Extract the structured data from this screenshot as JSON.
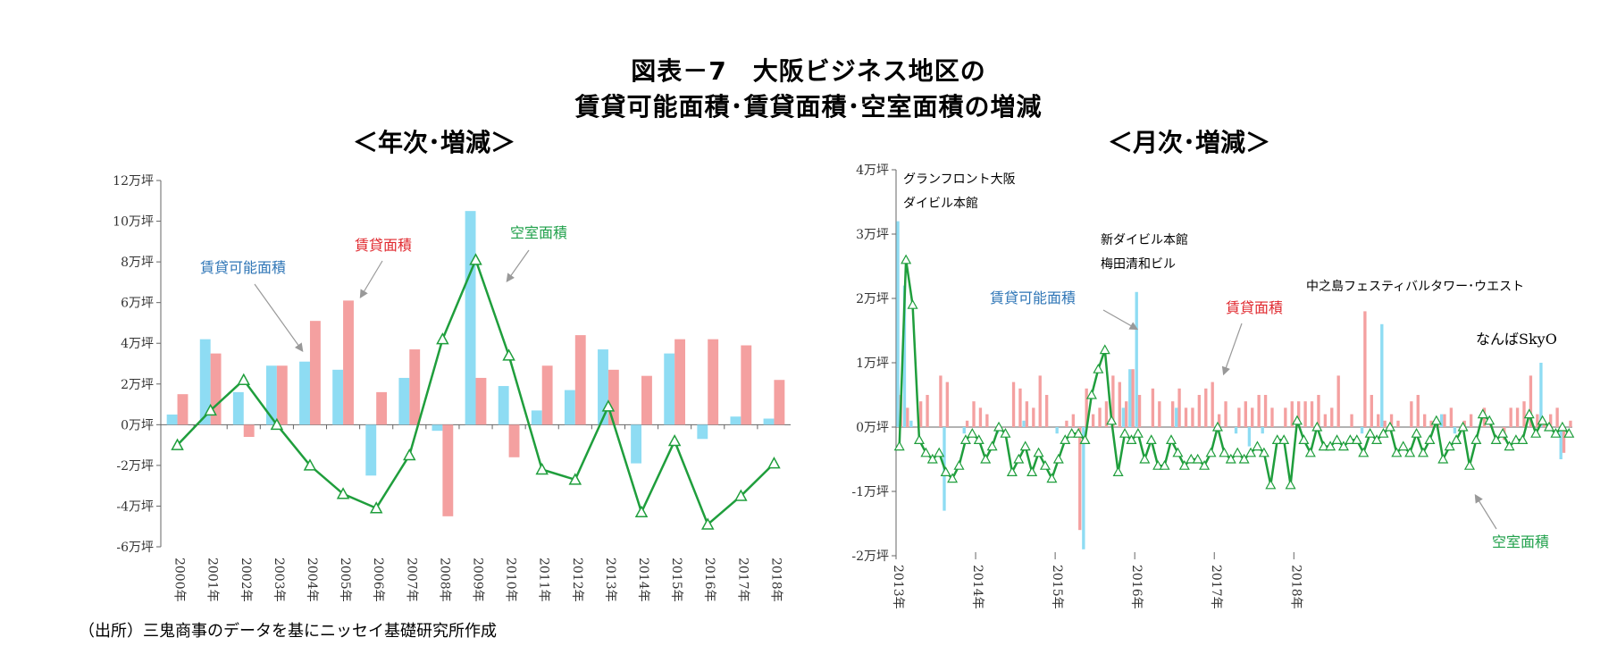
{
  "title_line1": "図表－7　大阪ビジネス地区の",
  "title_line2": "賃貸可能面積･賃貸面積･空室面積の増減",
  "source": "（出所）三鬼商事のデータを基にニッセイ基礎研究所作成",
  "colors": {
    "available": "#8edcf3",
    "leased": "#f4a0a0",
    "vacant": "#1f9e3c",
    "label_available": "#2e75b6",
    "label_leased": "#e0282e",
    "label_vacant": "#1fa04a",
    "arrow": "#999999"
  },
  "chart_data": [
    {
      "type": "bar",
      "title": "＜年次･増減＞",
      "categories": [
        "2000年",
        "2001年",
        "2002年",
        "2003年",
        "2004年",
        "2005年",
        "2006年",
        "2007年",
        "2008年",
        "2009年",
        "2010年",
        "2011年",
        "2012年",
        "2013年",
        "2014年",
        "2015年",
        "2016年",
        "2017年",
        "2018年"
      ],
      "y_ticks": [
        "-6万坪",
        "-4万坪",
        "-2万坪",
        "0万坪",
        "2万坪",
        "4万坪",
        "6万坪",
        "8万坪",
        "10万坪",
        "12万坪"
      ],
      "ylim": [
        -6,
        12
      ],
      "unit": "万坪",
      "series": [
        {
          "name": "賃貸可能面積",
          "kind": "bar",
          "values": [
            0.5,
            4.2,
            1.6,
            2.9,
            3.1,
            2.7,
            -2.5,
            2.3,
            -0.3,
            10.5,
            1.9,
            0.7,
            1.7,
            3.7,
            -1.9,
            3.5,
            -0.7,
            0.4,
            0.3
          ]
        },
        {
          "name": "賃貸面積",
          "kind": "bar",
          "values": [
            1.5,
            3.5,
            -0.6,
            2.9,
            5.1,
            6.1,
            1.6,
            3.7,
            -4.5,
            2.3,
            -1.6,
            2.9,
            4.4,
            2.7,
            2.4,
            4.2,
            4.2,
            3.9,
            2.2
          ]
        },
        {
          "name": "空室面積",
          "kind": "line",
          "values": [
            -1.0,
            0.7,
            2.2,
            0.0,
            -2.0,
            -3.4,
            -4.1,
            -1.5,
            4.2,
            8.1,
            3.4,
            -2.2,
            -2.7,
            0.9,
            -4.3,
            -0.8,
            -4.9,
            -3.5,
            -1.9
          ]
        }
      ],
      "annotations": [
        "賃貸可能面積",
        "賃貸面積",
        "空室面積"
      ]
    },
    {
      "type": "bar",
      "title": "＜月次･増減＞",
      "x_tick_labels": [
        "2013年",
        "2014年",
        "2015年",
        "2016年",
        "2017年",
        "2018年"
      ],
      "y_ticks": [
        "-2万坪",
        "-1万坪",
        "0万坪",
        "1万坪",
        "2万坪",
        "3万坪",
        "4万坪"
      ],
      "ylim": [
        -2,
        4
      ],
      "unit": "万坪",
      "months_start": "2013-01",
      "series": [
        {
          "name": "賃貸可能面積",
          "kind": "bar",
          "values": [
            3.2,
            2.2,
            0.1,
            0.0,
            0.0,
            0.0,
            0.0,
            -1.3,
            0.0,
            0.0,
            -0.1,
            0.0,
            0.0,
            0.0,
            0.0,
            -0.1,
            0.0,
            0.0,
            0.0,
            0.1,
            0.0,
            0.0,
            0.0,
            0.0,
            -0.1,
            0.0,
            0.0,
            0.0,
            -1.9,
            0.0,
            0.0,
            0.0,
            0.0,
            0.0,
            0.3,
            0.9,
            2.1,
            0.0,
            0.0,
            0.0,
            0.0,
            0.0,
            0.3,
            0.0,
            0.0,
            0.0,
            0.0,
            0.0,
            0.0,
            0.0,
            0.0,
            -0.1,
            0.0,
            -0.3,
            0.0,
            -0.1,
            0.0,
            0.0,
            0.0,
            0.0,
            0.0,
            0.0,
            0.0,
            0.0,
            0.0,
            0.0,
            0.0,
            0.0,
            0.0,
            0.0,
            -0.1,
            0.0,
            0.0,
            1.6,
            0.0,
            0.0,
            0.0,
            0.0,
            0.0,
            0.0,
            0.0,
            0.0,
            0.2,
            0.0,
            -0.1,
            0.0,
            0.0,
            0.0,
            0.0,
            0.0,
            0.0,
            0.0,
            0.0,
            0.0,
            0.0,
            0.0,
            0.0,
            1.0,
            0.0,
            0.0,
            -0.5,
            0.0
          ]
        },
        {
          "name": "賃貸面積",
          "kind": "bar",
          "values": [
            0.5,
            0.3,
            0.0,
            0.4,
            0.5,
            0.0,
            0.8,
            0.7,
            0.0,
            0.0,
            0.1,
            0.4,
            0.3,
            0.2,
            0.0,
            0.0,
            0.0,
            0.7,
            0.6,
            0.4,
            0.3,
            0.8,
            0.5,
            0.0,
            0.0,
            0.1,
            0.2,
            -1.6,
            0.6,
            0.2,
            0.3,
            0.4,
            0.8,
            0.7,
            0.4,
            0.9,
            0.5,
            0.0,
            0.6,
            0.4,
            0.0,
            0.4,
            0.6,
            0.3,
            0.3,
            0.5,
            0.6,
            0.7,
            0.2,
            0.4,
            0.0,
            0.3,
            0.4,
            0.3,
            0.5,
            0.5,
            0.3,
            0.0,
            0.3,
            0.4,
            0.4,
            0.4,
            0.4,
            0.5,
            0.2,
            0.3,
            0.8,
            0.0,
            0.2,
            0.0,
            1.8,
            0.5,
            0.2,
            0.1,
            0.2,
            0.1,
            0.0,
            0.4,
            0.5,
            0.2,
            0.1,
            0.1,
            0.2,
            0.3,
            0.0,
            0.1,
            0.2,
            0.0,
            0.3,
            0.1,
            0.0,
            -0.2,
            0.3,
            0.3,
            0.4,
            0.8,
            0.2,
            0.1,
            0.2,
            0.3,
            -0.4,
            0.1
          ]
        },
        {
          "name": "空室面積",
          "kind": "line",
          "values": [
            -0.3,
            2.6,
            1.9,
            -0.2,
            -0.4,
            -0.5,
            -0.4,
            -0.7,
            -0.8,
            -0.6,
            -0.2,
            -0.1,
            -0.2,
            -0.5,
            -0.3,
            0.0,
            -0.1,
            -0.7,
            -0.5,
            -0.3,
            -0.7,
            -0.4,
            -0.6,
            -0.8,
            -0.5,
            -0.2,
            -0.1,
            -0.1,
            -0.2,
            0.5,
            0.9,
            1.2,
            0.1,
            -0.7,
            -0.1,
            -0.2,
            -0.1,
            -0.5,
            -0.2,
            -0.6,
            -0.6,
            -0.2,
            -0.4,
            -0.6,
            -0.5,
            -0.5,
            -0.6,
            -0.4,
            0.0,
            -0.4,
            -0.5,
            -0.4,
            -0.5,
            -0.4,
            -0.3,
            -0.4,
            -0.9,
            -0.2,
            -0.2,
            -0.9,
            0.1,
            -0.2,
            -0.4,
            0.0,
            -0.3,
            -0.3,
            -0.2,
            -0.3,
            -0.2,
            -0.2,
            -0.4,
            -0.1,
            -0.2,
            -0.1,
            0.0,
            -0.4,
            -0.3,
            -0.4,
            -0.1,
            -0.4,
            -0.2,
            0.1,
            -0.5,
            -0.3,
            -0.2,
            0.0,
            -0.6,
            -0.2,
            0.2,
            0.1,
            -0.2,
            -0.1,
            -0.3,
            -0.2,
            -0.2,
            0.2,
            -0.1,
            0.1,
            0.0,
            -0.1,
            0.0,
            -0.1
          ]
        }
      ],
      "annotations": [
        "グランフロント大阪",
        "ダイビル本館",
        "新ダイビル本館",
        "梅田清和ビル",
        "中之島フェスティバルタワー･ウエスト",
        "なんばSkyO",
        "賃貸可能面積",
        "賃貸面積",
        "空室面積"
      ]
    }
  ]
}
